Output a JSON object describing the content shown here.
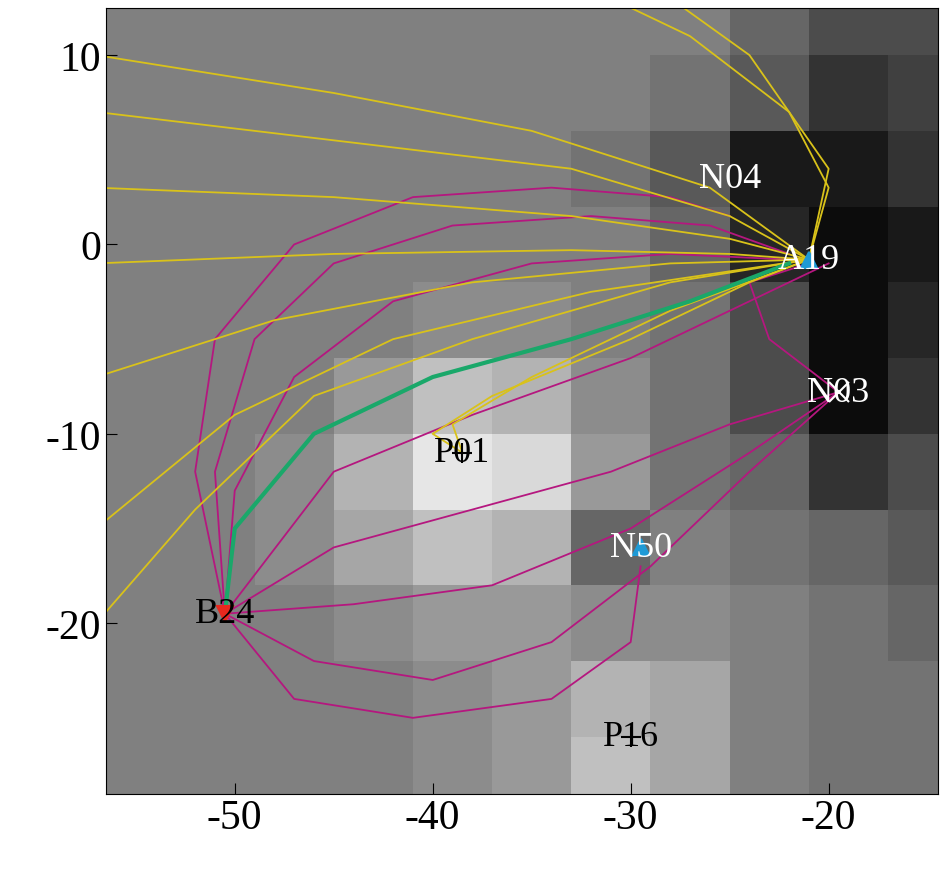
{
  "chart_data": {
    "type": "line",
    "xlim": [
      -56.5,
      -14.5
    ],
    "ylim": [
      -29,
      12.5
    ],
    "xticks": [
      -50,
      -40,
      -30,
      -20
    ],
    "yticks": [
      -20,
      -10,
      0,
      10
    ],
    "image": {
      "x_edges": [
        -57,
        -53,
        -49,
        -45,
        -41,
        -37,
        -33,
        -29,
        -25,
        -21,
        -17,
        -13
      ],
      "y_edges": [
        -30,
        -26,
        -22,
        -18,
        -14,
        -10,
        -6,
        -2,
        2,
        6,
        10,
        14
      ],
      "clim": [
        -1,
        1
      ],
      "cells": [
        [
          0,
          0,
          0,
          0,
          0.1,
          0.2,
          0.5,
          0.3,
          0,
          -0.1,
          -0.1
        ],
        [
          0,
          0,
          0,
          0,
          0.1,
          0.2,
          0.4,
          0.3,
          0,
          -0.1,
          -0.1
        ],
        [
          0,
          0,
          0,
          0.1,
          0.2,
          0.2,
          0.1,
          0.1,
          0,
          -0.1,
          -0.2
        ],
        [
          0,
          0,
          0.1,
          0.3,
          0.5,
          0.4,
          -0.2,
          0,
          -0.1,
          -0.2,
          -0.3
        ],
        [
          0,
          0,
          0.1,
          0.4,
          0.8,
          0.7,
          0.2,
          -0.1,
          -0.2,
          -0.6,
          -0.4
        ],
        [
          0,
          0,
          0,
          0.2,
          0.5,
          0.4,
          0.1,
          -0.1,
          -0.4,
          -0.9,
          -0.6
        ],
        [
          0,
          0,
          0,
          0,
          0.1,
          0.1,
          0,
          -0.1,
          -0.4,
          -0.9,
          -0.7
        ],
        [
          0,
          0,
          0,
          0,
          0,
          0,
          0,
          -0.2,
          -0.7,
          -0.9,
          -0.8
        ],
        [
          0,
          0,
          0,
          0,
          0,
          0,
          -0.1,
          -0.3,
          -0.8,
          -0.8,
          -0.6
        ],
        [
          0,
          0,
          0,
          0,
          0,
          0,
          0,
          -0.1,
          -0.3,
          -0.6,
          -0.5
        ],
        [
          0,
          0,
          0,
          0,
          0,
          0,
          0,
          0,
          -0.2,
          -0.4,
          -0.4
        ]
      ]
    },
    "series": [
      {
        "color": "#b5177f",
        "lines": [
          [
            [
              -50.5,
              -19.5
            ],
            [
              -52,
              -12
            ],
            [
              -51,
              -5
            ],
            [
              -47,
              0
            ],
            [
              -41,
              2.5
            ],
            [
              -34,
              3
            ],
            [
              -28,
              2.5
            ],
            [
              -25,
              1.5
            ]
          ],
          [
            [
              -50.5,
              -19.5
            ],
            [
              -51,
              -12
            ],
            [
              -49,
              -5
            ],
            [
              -45,
              -1
            ],
            [
              -39,
              1
            ],
            [
              -32,
              1.5
            ],
            [
              -26,
              1
            ],
            [
              -22,
              -0.5
            ]
          ],
          [
            [
              -50.5,
              -19.5
            ],
            [
              -50,
              -13
            ],
            [
              -47,
              -7
            ],
            [
              -42,
              -3
            ],
            [
              -35,
              -1
            ],
            [
              -28,
              -0.5
            ],
            [
              -22,
              -0.8
            ]
          ],
          [
            [
              -50.5,
              -19.5
            ],
            [
              -45,
              -12
            ],
            [
              -38,
              -9
            ],
            [
              -30,
              -6
            ],
            [
              -24,
              -3
            ],
            [
              -20,
              -1
            ]
          ],
          [
            [
              -50.5,
              -19.5
            ],
            [
              -45,
              -16
            ],
            [
              -38,
              -14
            ],
            [
              -31,
              -12
            ],
            [
              -25,
              -9.5
            ],
            [
              -19.5,
              -7.8
            ]
          ],
          [
            [
              -50.5,
              -19.5
            ],
            [
              -44,
              -19
            ],
            [
              -37,
              -18
            ],
            [
              -30,
              -15
            ],
            [
              -24,
              -11
            ],
            [
              -19.5,
              -7.8
            ]
          ],
          [
            [
              -50.5,
              -19.5
            ],
            [
              -46,
              -22
            ],
            [
              -40,
              -23
            ],
            [
              -34,
              -21
            ],
            [
              -29,
              -17
            ],
            [
              -24,
              -12
            ],
            [
              -19.5,
              -7.8
            ]
          ],
          [
            [
              -50.5,
              -19.5
            ],
            [
              -47,
              -24
            ],
            [
              -41,
              -25
            ],
            [
              -34,
              -24
            ],
            [
              -30,
              -21
            ],
            [
              -29.5,
              -17
            ]
          ],
          [
            [
              -21,
              -1
            ],
            [
              -24,
              -2
            ],
            [
              -23,
              -5
            ],
            [
              -19.5,
              -7.8
            ]
          ]
        ]
      },
      {
        "color": "#d9c21a",
        "lines": [
          [
            [
              -57,
              10
            ],
            [
              -45,
              8
            ],
            [
              -35,
              6
            ],
            [
              -26,
              3
            ],
            [
              -21,
              -0.8
            ]
          ],
          [
            [
              -57,
              7
            ],
            [
              -45,
              5.5
            ],
            [
              -33,
              4
            ],
            [
              -25,
              1.5
            ],
            [
              -21,
              -0.8
            ]
          ],
          [
            [
              -57,
              3
            ],
            [
              -45,
              2.5
            ],
            [
              -33,
              1.5
            ],
            [
              -25,
              0.3
            ],
            [
              -21,
              -0.8
            ]
          ],
          [
            [
              -57,
              -1
            ],
            [
              -45,
              -0.5
            ],
            [
              -33,
              -0.3
            ],
            [
              -25,
              -0.5
            ],
            [
              -21,
              -0.8
            ]
          ],
          [
            [
              -57,
              -7
            ],
            [
              -48,
              -4
            ],
            [
              -38,
              -2
            ],
            [
              -28,
              -1
            ],
            [
              -21,
              -0.8
            ]
          ],
          [
            [
              -57,
              -15
            ],
            [
              -50,
              -9
            ],
            [
              -42,
              -5
            ],
            [
              -32,
              -2.5
            ],
            [
              -21,
              -0.8
            ]
          ],
          [
            [
              -57,
              -20
            ],
            [
              -52,
              -14
            ],
            [
              -46,
              -8
            ],
            [
              -38,
              -5
            ],
            [
              -28,
              -2
            ],
            [
              -21,
              -0.8
            ]
          ],
          [
            [
              -21,
              -0.8
            ],
            [
              -20,
              3
            ],
            [
              -22,
              7
            ],
            [
              -27,
              11
            ],
            [
              -31,
              13
            ]
          ],
          [
            [
              -21,
              -0.8
            ],
            [
              -20,
              4
            ],
            [
              -24,
              10
            ],
            [
              -28,
              13
            ]
          ],
          [
            [
              -38.5,
              -11
            ],
            [
              -40,
              -10
            ],
            [
              -37,
              -8
            ],
            [
              -30,
              -5
            ],
            [
              -24,
              -2
            ],
            [
              -21,
              -0.8
            ]
          ],
          [
            [
              -38.5,
              -11
            ],
            [
              -39,
              -9.5
            ],
            [
              -35,
              -7
            ],
            [
              -28,
              -3.5
            ],
            [
              -21,
              -0.8
            ]
          ]
        ]
      },
      {
        "color": "#1aa86a",
        "lines": [
          [
            [
              -50.5,
              -19.5
            ],
            [
              -50,
              -15
            ],
            [
              -46,
              -10
            ],
            [
              -40,
              -7
            ],
            [
              -33,
              -5
            ],
            [
              -27,
              -3
            ],
            [
              -22,
              -1
            ]
          ]
        ]
      }
    ],
    "points": [
      {
        "label": "N04",
        "x": -25,
        "y": 3.5,
        "marker": "none",
        "color": "#ffffff",
        "label_color": "#ffffff"
      },
      {
        "label": "A19",
        "x": -21,
        "y": -0.8,
        "marker": "triangle_up",
        "color": "#1e9ad6",
        "label_color": "#ffffff"
      },
      {
        "label": "N03",
        "x": -19.5,
        "y": -7.8,
        "marker": "x",
        "color": "#ffffff",
        "label_color": "#ffffff"
      },
      {
        "label": "P01",
        "x": -38.5,
        "y": -11,
        "marker": "plus",
        "color": "#000000",
        "label_color": "#000000"
      },
      {
        "label": "N50",
        "x": -29.5,
        "y": -16,
        "marker": "triangle_up",
        "color": "#1e9ad6",
        "label_color": "#ffffff"
      },
      {
        "label": "B24",
        "x": -50.5,
        "y": -19.5,
        "marker": "triangle_down",
        "color": "#e8281e",
        "label_color": "#000000"
      },
      {
        "label": "P16",
        "x": -30,
        "y": -26,
        "marker": "plus",
        "color": "#000000",
        "label_color": "#000000"
      }
    ]
  }
}
